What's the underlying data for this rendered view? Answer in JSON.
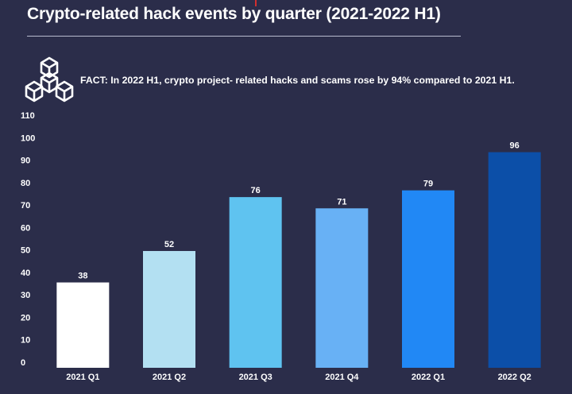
{
  "header": {
    "title": "Crypto-related hack events by quarter (2021-2022 H1)",
    "fact": "FACT: In 2022 H1, crypto project- related hacks and scams rose by 94% compared to 2021 H1."
  },
  "icons": {
    "fact_icon": "cubes-icon"
  },
  "colors": {
    "background": "#2b2d4a",
    "bars": [
      "#ffffff",
      "#b3e0f2",
      "#5fc3f0",
      "#68b1f5",
      "#2188f5",
      "#0c4fa8"
    ]
  },
  "chart_data": {
    "type": "bar",
    "title": "Crypto-related hack events by quarter (2021-2022 H1)",
    "categories": [
      "2021 Q1",
      "2021 Q2",
      "2021 Q3",
      "2021 Q4",
      "2022 Q1",
      "2022 Q2"
    ],
    "values": [
      38,
      52,
      76,
      71,
      79,
      96
    ],
    "yticks": [
      0,
      10,
      20,
      30,
      40,
      50,
      60,
      70,
      80,
      90,
      100,
      110
    ],
    "ylim": [
      0,
      110
    ],
    "xlabel": "",
    "ylabel": "",
    "grid": false,
    "legend": "none"
  }
}
